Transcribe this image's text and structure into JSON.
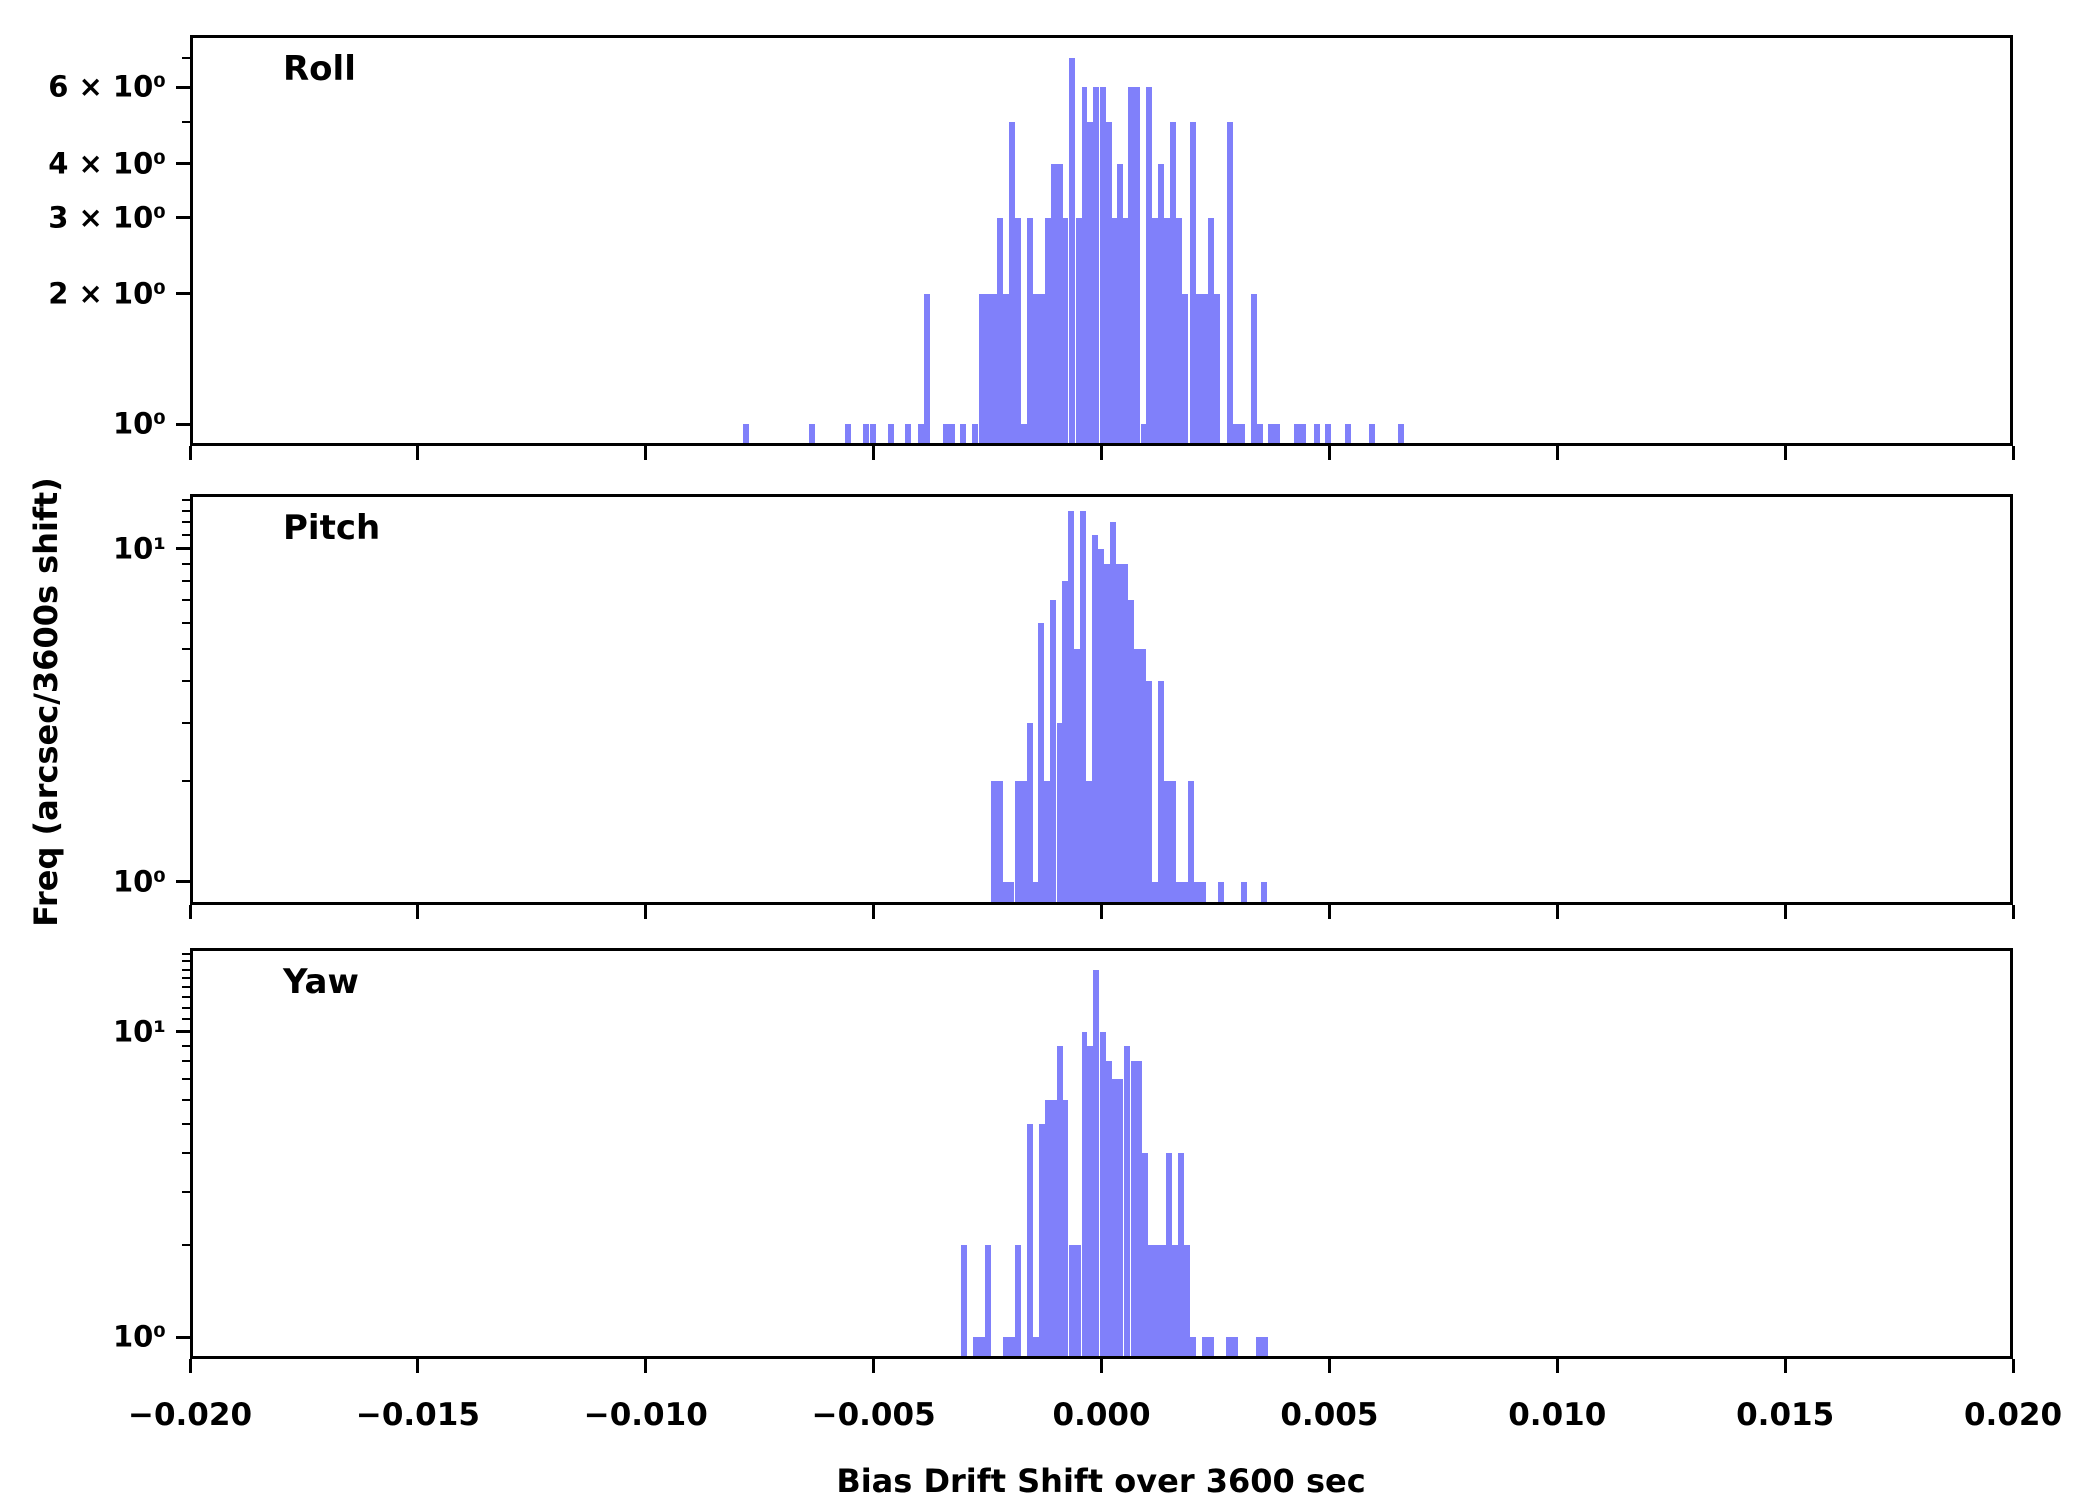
{
  "figure": {
    "background": "#ffffff",
    "axis_color": "#000000"
  },
  "chart_data": {
    "type": "bar",
    "subtype": "histogram-stacked-panels",
    "xlabel": "Bias Drift Shift over 3600 sec",
    "ylabel": "Freq (arcsec/3600s shift)",
    "x_range": [
      -0.02,
      0.02
    ],
    "bin_width": 0.000132,
    "bar_color": "#8080fa",
    "grid": "off",
    "x_ticks": [
      {
        "v": -0.02,
        "label": "−0.020"
      },
      {
        "v": -0.015,
        "label": "−0.015"
      },
      {
        "v": -0.01,
        "label": "−0.010"
      },
      {
        "v": -0.005,
        "label": "−0.005"
      },
      {
        "v": 0.0,
        "label": "0.000"
      },
      {
        "v": 0.005,
        "label": "0.005"
      },
      {
        "v": 0.01,
        "label": "0.010"
      },
      {
        "v": 0.015,
        "label": "0.015"
      },
      {
        "v": 0.02,
        "label": "0.020"
      }
    ],
    "panels": [
      {
        "label": "Roll",
        "y_scale": "log",
        "y_range": [
          0.905,
          7.8
        ],
        "y_ticks": [
          {
            "v": 6,
            "label": "6 × 10⁰"
          },
          {
            "v": 4,
            "label": "4 × 10⁰"
          },
          {
            "v": 3,
            "label": "3 × 10⁰"
          },
          {
            "v": 2,
            "label": "2 × 10⁰"
          },
          {
            "v": 1,
            "label": "10⁰"
          }
        ],
        "y_minor": [
          5,
          7
        ],
        "bars": [
          [
            -0.0079,
            1
          ],
          [
            -0.00643,
            1
          ],
          [
            -0.00564,
            1
          ],
          [
            -0.00524,
            1
          ],
          [
            -0.0051,
            1
          ],
          [
            -0.00471,
            1
          ],
          [
            -0.00432,
            1
          ],
          [
            -0.00403,
            1
          ],
          [
            -0.0039,
            2
          ],
          [
            -0.00349,
            1
          ],
          [
            -0.00336,
            1
          ],
          [
            -0.00311,
            1
          ],
          [
            -0.00285,
            1
          ],
          [
            -0.0027,
            2
          ],
          [
            -0.00257,
            2
          ],
          [
            -0.00243,
            2
          ],
          [
            -0.0023,
            3
          ],
          [
            -0.00217,
            2
          ],
          [
            -0.00204,
            5
          ],
          [
            -0.00191,
            3
          ],
          [
            -0.00178,
            1
          ],
          [
            -0.00164,
            3
          ],
          [
            -0.00151,
            2
          ],
          [
            -0.00138,
            2
          ],
          [
            -0.00125,
            3
          ],
          [
            -0.00112,
            4
          ],
          [
            -0.00099,
            4
          ],
          [
            -0.00086,
            3
          ],
          [
            -0.00072,
            7
          ],
          [
            -0.00057,
            3
          ],
          [
            -0.00044,
            6
          ],
          [
            -0.00031,
            5
          ],
          [
            -0.00018,
            6
          ],
          [
            -4e-05,
            6
          ],
          [
            9e-05,
            5
          ],
          [
            0.00022,
            3
          ],
          [
            0.00035,
            4
          ],
          [
            0.00048,
            3
          ],
          [
            0.00059,
            6
          ],
          [
            0.00072,
            6
          ],
          [
            0.00086,
            1
          ],
          [
            0.00099,
            6
          ],
          [
            0.00112,
            3
          ],
          [
            0.00125,
            4
          ],
          [
            0.00138,
            3
          ],
          [
            0.00151,
            5
          ],
          [
            0.00164,
            3
          ],
          [
            0.00178,
            2
          ],
          [
            0.00195,
            5
          ],
          [
            0.00208,
            2
          ],
          [
            0.00222,
            2
          ],
          [
            0.00235,
            3
          ],
          [
            0.00248,
            2
          ],
          [
            0.00276,
            5
          ],
          [
            0.0029,
            1
          ],
          [
            0.00303,
            1
          ],
          [
            0.00329,
            2
          ],
          [
            0.00342,
            1
          ],
          [
            0.00366,
            1
          ],
          [
            0.00379,
            1
          ],
          [
            0.00423,
            1
          ],
          [
            0.00436,
            1
          ],
          [
            0.00467,
            1
          ],
          [
            0.00493,
            1
          ],
          [
            0.00535,
            1
          ],
          [
            0.00588,
            1
          ],
          [
            0.00653,
            1
          ]
        ]
      },
      {
        "label": "Pitch",
        "y_scale": "log",
        "y_range": [
          0.868,
          14.3
        ],
        "y_ticks": [
          {
            "v": 10,
            "label": "10¹"
          },
          {
            "v": 1,
            "label": "10⁰"
          }
        ],
        "y_minor": [
          2,
          3,
          4,
          5,
          6,
          7,
          8,
          9,
          11,
          12,
          13,
          14
        ],
        "bars": [
          [
            -0.00244,
            2
          ],
          [
            -0.00231,
            2
          ],
          [
            -0.00218,
            1
          ],
          [
            -0.00205,
            1
          ],
          [
            -0.00191,
            2
          ],
          [
            -0.00178,
            2
          ],
          [
            -0.00165,
            3
          ],
          [
            -0.00152,
            1
          ],
          [
            -0.00139,
            6
          ],
          [
            -0.00126,
            2
          ],
          [
            -0.00113,
            7
          ],
          [
            -0.00099,
            3
          ],
          [
            -0.00086,
            8
          ],
          [
            -0.00073,
            13
          ],
          [
            -0.0006,
            5
          ],
          [
            -0.00047,
            13
          ],
          [
            -0.00034,
            2
          ],
          [
            -0.0002,
            11
          ],
          [
            -7e-05,
            10
          ],
          [
            6e-05,
            9
          ],
          [
            0.00019,
            12
          ],
          [
            0.00032,
            9
          ],
          [
            0.00045,
            9
          ],
          [
            0.00059,
            7
          ],
          [
            0.00072,
            5
          ],
          [
            0.00085,
            5
          ],
          [
            0.00098,
            4
          ],
          [
            0.00111,
            1
          ],
          [
            0.00124,
            4
          ],
          [
            0.00137,
            2
          ],
          [
            0.00151,
            2
          ],
          [
            0.00164,
            1
          ],
          [
            0.00177,
            1
          ],
          [
            0.0019,
            2
          ],
          [
            0.00203,
            1
          ],
          [
            0.00216,
            1
          ],
          [
            0.00256,
            1
          ],
          [
            0.00308,
            1
          ],
          [
            0.00352,
            1
          ]
        ]
      },
      {
        "label": "Yaw",
        "y_scale": "log",
        "y_range": [
          0.868,
          18.4
        ],
        "y_ticks": [
          {
            "v": 10,
            "label": "10¹"
          },
          {
            "v": 1,
            "label": "10⁰"
          }
        ],
        "y_minor": [
          2,
          3,
          4,
          5,
          6,
          7,
          8,
          9,
          11,
          12,
          13,
          14,
          15,
          16,
          17,
          18
        ],
        "bars": [
          [
            -0.0031,
            2
          ],
          [
            -0.00283,
            1
          ],
          [
            -0.0027,
            1
          ],
          [
            -0.00257,
            2
          ],
          [
            -0.00217,
            1
          ],
          [
            -0.00204,
            1
          ],
          [
            -0.00191,
            2
          ],
          [
            -0.00165,
            5
          ],
          [
            -0.00151,
            1
          ],
          [
            -0.00138,
            5
          ],
          [
            -0.00125,
            6
          ],
          [
            -0.00112,
            6
          ],
          [
            -0.00099,
            9
          ],
          [
            -0.00086,
            6
          ],
          [
            -0.00072,
            2
          ],
          [
            -0.00059,
            2
          ],
          [
            -0.00044,
            10
          ],
          [
            -0.00031,
            9
          ],
          [
            -0.00018,
            16
          ],
          [
            -4e-05,
            10
          ],
          [
            9e-05,
            8
          ],
          [
            0.00022,
            7
          ],
          [
            0.00035,
            7
          ],
          [
            0.0005,
            9
          ],
          [
            0.00064,
            8
          ],
          [
            0.00077,
            8
          ],
          [
            0.0009,
            4
          ],
          [
            0.00103,
            2
          ],
          [
            0.00116,
            2
          ],
          [
            0.00129,
            2
          ],
          [
            0.00143,
            4
          ],
          [
            0.00156,
            2
          ],
          [
            0.00169,
            4
          ],
          [
            0.00182,
            2
          ],
          [
            0.00195,
            1
          ],
          [
            0.00222,
            1
          ],
          [
            0.00235,
            1
          ],
          [
            0.00274,
            1
          ],
          [
            0.00287,
            1
          ],
          [
            0.0034,
            1
          ],
          [
            0.00353,
            1
          ]
        ]
      }
    ]
  }
}
